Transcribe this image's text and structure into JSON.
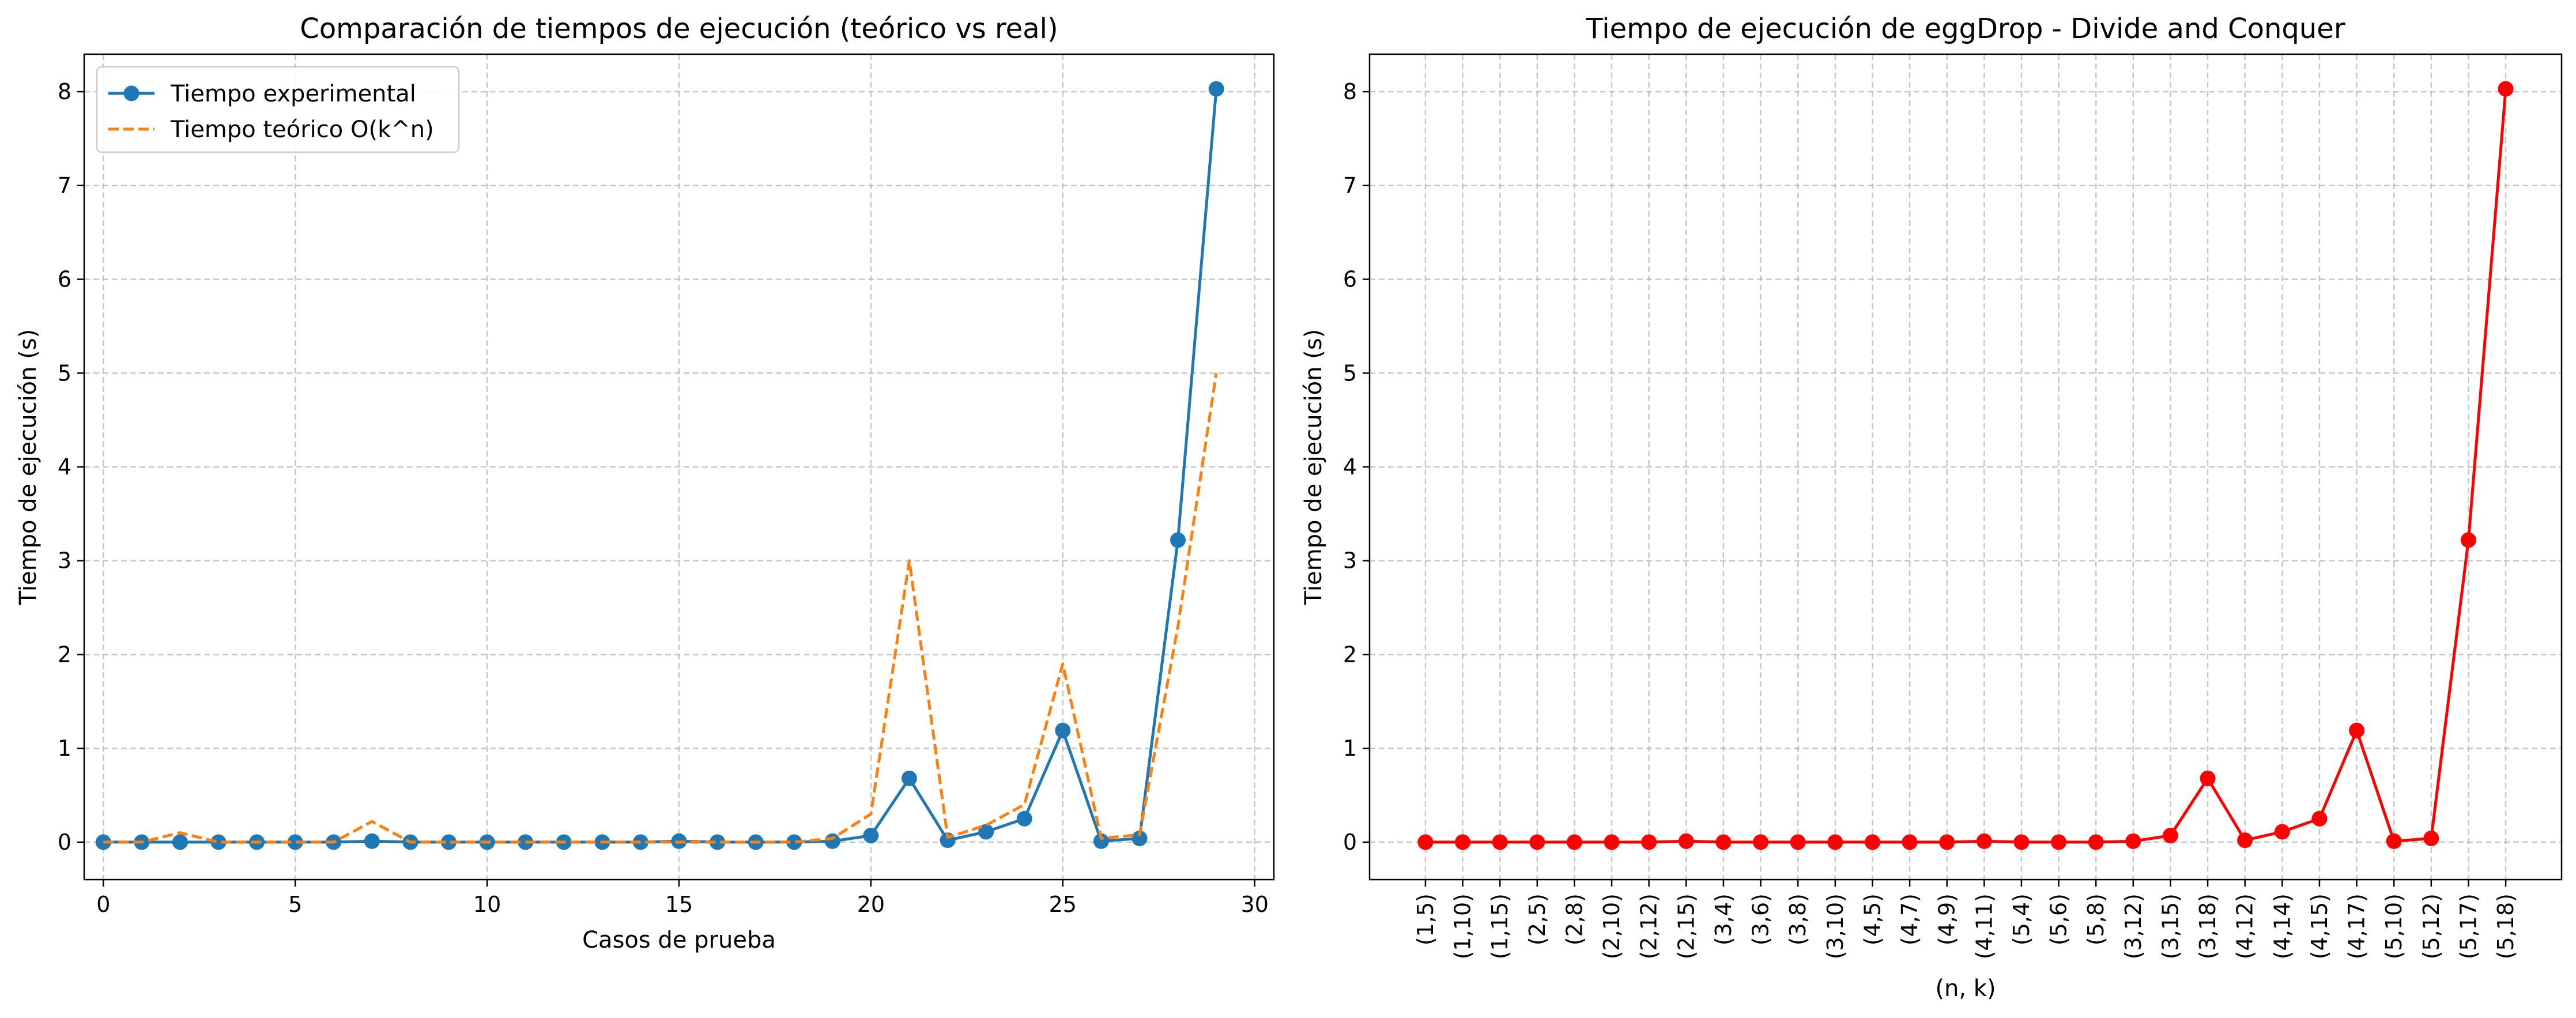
{
  "chart_data": [
    {
      "type": "line",
      "title": "Comparación de tiempos de ejecución (teórico vs real)",
      "xlabel": "Casos de prueba",
      "ylabel": "Tiempo de ejecución (s)",
      "xlim": [
        -0.5,
        30.5
      ],
      "ylim": [
        -0.4,
        8.4
      ],
      "xticks": [
        "0",
        "5",
        "10",
        "15",
        "20",
        "25",
        "30"
      ],
      "yticks": [
        "0",
        "1",
        "2",
        "3",
        "4",
        "5",
        "6",
        "7",
        "8"
      ],
      "grid": true,
      "legend_position": "top-left",
      "x": [
        0,
        1,
        2,
        3,
        4,
        5,
        6,
        7,
        8,
        9,
        10,
        11,
        12,
        13,
        14,
        15,
        16,
        17,
        18,
        19,
        20,
        21,
        22,
        23,
        24,
        25,
        26,
        27,
        28,
        29
      ],
      "series": [
        {
          "name": "Tiempo experimental",
          "color": "#1f77b4",
          "style": "solid-marker",
          "values": [
            0,
            0,
            0,
            0,
            0,
            0,
            0,
            0.01,
            0,
            0,
            0,
            0,
            0,
            0,
            0,
            0.01,
            0,
            0,
            0,
            0.01,
            0.07,
            0.68,
            0.02,
            0.11,
            0.25,
            1.19,
            0.01,
            0.04,
            3.22,
            8.03
          ]
        },
        {
          "name": "Tiempo teórico O(k^n)",
          "color": "#ff7f0e",
          "style": "dashed",
          "values": [
            0,
            0,
            0.1,
            0,
            0,
            0,
            0,
            0.22,
            0,
            0,
            0,
            0,
            0,
            0,
            0,
            0,
            0,
            0,
            0,
            0.04,
            0.3,
            3.0,
            0.05,
            0.18,
            0.4,
            1.9,
            0.04,
            0.08,
            2.3,
            5.0
          ]
        }
      ]
    },
    {
      "type": "line",
      "title": "Tiempo de ejecución de eggDrop - Divide and Conquer",
      "xlabel": "(n, k)",
      "ylabel": "Tiempo de ejecución (s)",
      "ylim": [
        -0.4,
        8.4
      ],
      "yticks": [
        "0",
        "1",
        "2",
        "3",
        "4",
        "5",
        "6",
        "7",
        "8"
      ],
      "grid": true,
      "categories": [
        "(1,5)",
        "(1,10)",
        "(1,15)",
        "(2,5)",
        "(2,8)",
        "(2,10)",
        "(2,12)",
        "(2,15)",
        "(3,4)",
        "(3,6)",
        "(3,8)",
        "(3,10)",
        "(4,5)",
        "(4,7)",
        "(4,9)",
        "(4,11)",
        "(5,4)",
        "(5,6)",
        "(5,8)",
        "(3,12)",
        "(3,15)",
        "(3,18)",
        "(4,12)",
        "(4,14)",
        "(4,15)",
        "(4,17)",
        "(5,10)",
        "(5,12)",
        "(5,17)",
        "(5,18)"
      ],
      "series": [
        {
          "color": "#ff0000",
          "style": "solid-marker",
          "values": [
            0,
            0,
            0,
            0,
            0,
            0,
            0,
            0.01,
            0,
            0,
            0,
            0,
            0,
            0,
            0,
            0.01,
            0,
            0,
            0,
            0.01,
            0.07,
            0.68,
            0.02,
            0.11,
            0.25,
            1.19,
            0.01,
            0.04,
            3.22,
            8.03
          ]
        }
      ]
    }
  ]
}
